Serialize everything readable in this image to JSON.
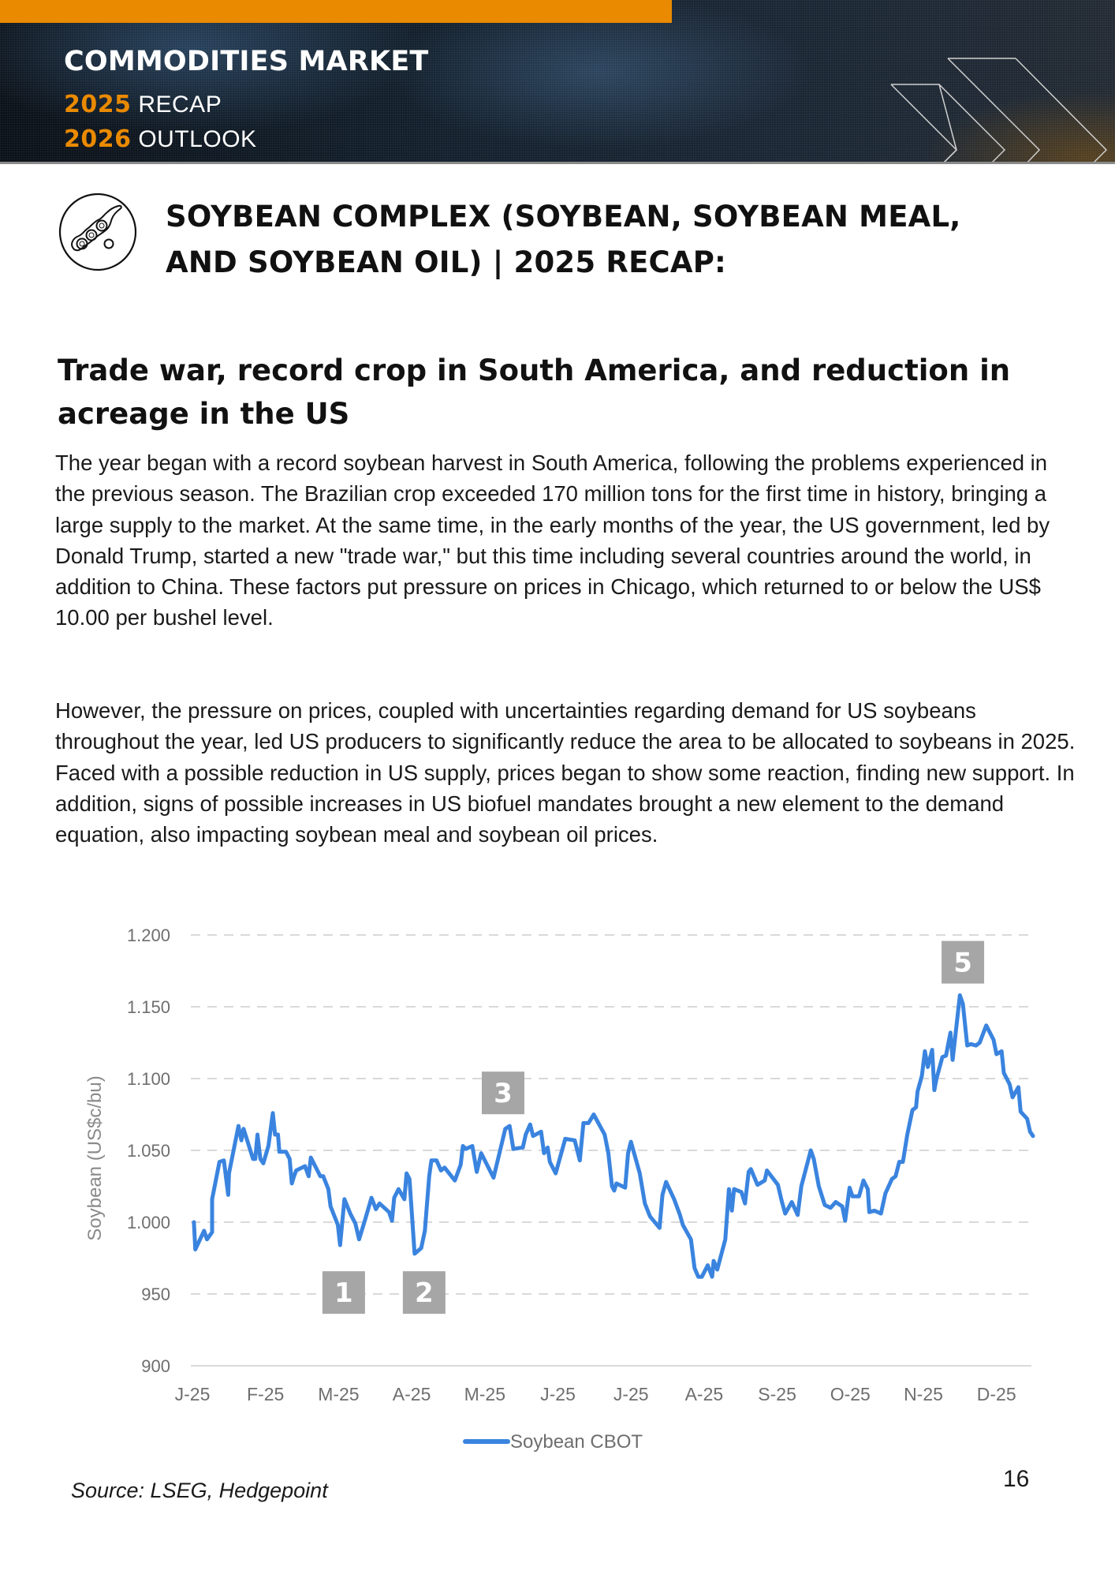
{
  "header": {
    "title": "COMMODITIES MARKET",
    "line1_year": "2025",
    "line1_text": "RECAP",
    "line2_year": "2026",
    "line2_text": "OUTLOOK",
    "accent_color": "#ea8a00"
  },
  "section": {
    "icon": "soybean-pod-icon",
    "title_line1": "SOYBEAN COMPLEX (SOYBEAN, SOYBEAN MEAL,",
    "title_line2": "AND SOYBEAN OIL) | 2025 RECAP:"
  },
  "article": {
    "subheading": "Trade war, record crop in South America, and reduction in acreage in the US",
    "paragraphs": [
      "The year began with a record soybean harvest in South America, following the problems experienced in the previous season. The Brazilian crop exceeded 170 million tons for the first time in history, bringing a large supply to the market. At the same time, in the early months of the year, the US government, led by Donald Trump, started a new \"trade war,\" but this time including several countries around the world, in addition to China. These factors put pressure on prices in Chicago, which returned to or below the US$ 10.00 per bushel level.",
      "However, the pressure on prices, coupled with uncertainties regarding demand for US soybeans throughout the year, led US producers to significantly reduce the area to be allocated to soybeans in 2025. Faced with a possible reduction in US supply, prices began to show some reaction, finding new support. In addition, signs of possible increases in US biofuel mandates brought a new element to the demand equation, also impacting soybean meal and soybean oil prices."
    ]
  },
  "chart_data": {
    "type": "line",
    "title": "",
    "xlabel": "",
    "ylabel": "Soybean (US$c/bu)",
    "ylim": [
      900,
      1200
    ],
    "yticks": [
      900,
      950,
      1000,
      1050,
      1100,
      1150,
      1200
    ],
    "ytick_labels": [
      "900",
      "950",
      "1.000",
      "1.050",
      "1.100",
      "1.150",
      "1.200"
    ],
    "xlim_months": [
      0,
      11.5
    ],
    "xtick_labels": [
      "J-25",
      "F-25",
      "M-25",
      "A-25",
      "M-25",
      "J-25",
      "J-25",
      "A-25",
      "S-25",
      "O-25",
      "N-25",
      "D-25"
    ],
    "x_unit": "months since start of Jan 2025",
    "grid": "horizontal dashed",
    "legend": {
      "position": "bottom-center",
      "entries": [
        "Soybean CBOT"
      ]
    },
    "series": [
      {
        "name": "Soybean CBOT",
        "color": "#3a84df",
        "points": [
          [
            0.02,
            1000
          ],
          [
            0.04,
            981
          ],
          [
            0.16,
            994
          ],
          [
            0.2,
            988
          ],
          [
            0.27,
            993
          ],
          [
            0.27,
            1016
          ],
          [
            0.37,
            1042
          ],
          [
            0.43,
            1043
          ],
          [
            0.49,
            1019
          ],
          [
            0.5,
            1034
          ],
          [
            0.63,
            1067
          ],
          [
            0.67,
            1057
          ],
          [
            0.7,
            1065
          ],
          [
            0.83,
            1044
          ],
          [
            0.86,
            1044
          ],
          [
            0.89,
            1061
          ],
          [
            0.93,
            1044
          ],
          [
            0.97,
            1041
          ],
          [
            1.04,
            1053
          ],
          [
            1.1,
            1076
          ],
          [
            1.13,
            1061
          ],
          [
            1.17,
            1061
          ],
          [
            1.19,
            1049
          ],
          [
            1.28,
            1049
          ],
          [
            1.33,
            1044
          ],
          [
            1.36,
            1027
          ],
          [
            1.39,
            1032
          ],
          [
            1.42,
            1036
          ],
          [
            1.54,
            1039
          ],
          [
            1.59,
            1032
          ],
          [
            1.62,
            1045
          ],
          [
            1.75,
            1032
          ],
          [
            1.79,
            1032
          ],
          [
            1.86,
            1023
          ],
          [
            1.89,
            1011
          ],
          [
            1.99,
            998
          ],
          [
            2.02,
            984
          ],
          [
            2.08,
            1016
          ],
          [
            2.16,
            1006
          ],
          [
            2.23,
            999
          ],
          [
            2.28,
            988
          ],
          [
            2.37,
            1003
          ],
          [
            2.45,
            1017
          ],
          [
            2.51,
            1009
          ],
          [
            2.56,
            1013
          ],
          [
            2.69,
            1007
          ],
          [
            2.73,
            1001
          ],
          [
            2.76,
            1017
          ],
          [
            2.82,
            1023
          ],
          [
            2.9,
            1016
          ],
          [
            2.93,
            1034
          ],
          [
            2.97,
            1030
          ],
          [
            3.04,
            978
          ],
          [
            3.13,
            982
          ],
          [
            3.18,
            994
          ],
          [
            3.24,
            1032
          ],
          [
            3.27,
            1043
          ],
          [
            3.34,
            1043
          ],
          [
            3.4,
            1036
          ],
          [
            3.45,
            1038
          ],
          [
            3.59,
            1029
          ],
          [
            3.67,
            1040
          ],
          [
            3.7,
            1053
          ],
          [
            3.74,
            1051
          ],
          [
            3.83,
            1053
          ],
          [
            3.89,
            1035
          ],
          [
            3.95,
            1048
          ],
          [
            4.12,
            1031
          ],
          [
            4.28,
            1065
          ],
          [
            4.34,
            1067
          ],
          [
            4.39,
            1051
          ],
          [
            4.52,
            1052
          ],
          [
            4.56,
            1061
          ],
          [
            4.62,
            1068
          ],
          [
            4.66,
            1060
          ],
          [
            4.77,
            1063
          ],
          [
            4.81,
            1048
          ],
          [
            4.86,
            1052
          ],
          [
            4.89,
            1042
          ],
          [
            4.97,
            1034
          ],
          [
            5.1,
            1058
          ],
          [
            5.23,
            1057
          ],
          [
            5.3,
            1043
          ],
          [
            5.35,
            1069
          ],
          [
            5.42,
            1069
          ],
          [
            5.49,
            1075
          ],
          [
            5.64,
            1061
          ],
          [
            5.69,
            1048
          ],
          [
            5.74,
            1025
          ],
          [
            5.77,
            1022
          ],
          [
            5.8,
            1027
          ],
          [
            5.92,
            1024
          ],
          [
            5.96,
            1048
          ],
          [
            5.999,
            1056
          ],
          [
            6.12,
            1034
          ],
          [
            6.19,
            1013
          ],
          [
            6.26,
            1004
          ],
          [
            6.39,
            996
          ],
          [
            6.43,
            1019
          ],
          [
            6.48,
            1028
          ],
          [
            6.59,
            1016
          ],
          [
            6.67,
            1005
          ],
          [
            6.71,
            998
          ],
          [
            6.82,
            988
          ],
          [
            6.87,
            968
          ],
          [
            6.92,
            962
          ],
          [
            6.97,
            962
          ],
          [
            7.05,
            970
          ],
          [
            7.11,
            962
          ],
          [
            7.13,
            973
          ],
          [
            7.18,
            967
          ],
          [
            7.29,
            988
          ],
          [
            7.34,
            1023
          ],
          [
            7.38,
            1008
          ],
          [
            7.41,
            1023
          ],
          [
            7.51,
            1021
          ],
          [
            7.56,
            1013
          ],
          [
            7.61,
            1035
          ],
          [
            7.64,
            1037
          ],
          [
            7.73,
            1026
          ],
          [
            7.83,
            1029
          ],
          [
            7.86,
            1036
          ],
          [
            8.01,
            1026
          ],
          [
            8.06,
            1015
          ],
          [
            8.11,
            1006
          ],
          [
            8.2,
            1014
          ],
          [
            8.28,
            1005
          ],
          [
            8.33,
            1025
          ],
          [
            8.46,
            1050
          ],
          [
            8.5,
            1044
          ],
          [
            8.57,
            1025
          ],
          [
            8.65,
            1012
          ],
          [
            8.73,
            1010
          ],
          [
            8.8,
            1014
          ],
          [
            8.89,
            1011
          ],
          [
            8.93,
            1001
          ],
          [
            8.99,
            1024
          ],
          [
            9.03,
            1018
          ],
          [
            9.12,
            1018
          ],
          [
            9.18,
            1029
          ],
          [
            9.24,
            1023
          ],
          [
            9.26,
            1007
          ],
          [
            9.33,
            1008
          ],
          [
            9.42,
            1006
          ],
          [
            9.48,
            1020
          ],
          [
            9.57,
            1030
          ],
          [
            9.62,
            1032
          ],
          [
            9.67,
            1042
          ],
          [
            9.72,
            1042
          ],
          [
            9.78,
            1061
          ],
          [
            9.85,
            1078
          ],
          [
            9.9,
            1080
          ],
          [
            9.92,
            1091
          ],
          [
            9.98,
            1102
          ],
          [
            10.02,
            1119
          ],
          [
            10.06,
            1108
          ],
          [
            10.12,
            1120
          ],
          [
            10.15,
            1092
          ],
          [
            10.18,
            1100
          ],
          [
            10.26,
            1115
          ],
          [
            10.31,
            1116
          ],
          [
            10.37,
            1132
          ],
          [
            10.4,
            1113
          ],
          [
            10.5,
            1158
          ],
          [
            10.54,
            1152
          ],
          [
            10.6,
            1123
          ],
          [
            10.65,
            1124
          ],
          [
            10.72,
            1123
          ],
          [
            10.77,
            1125
          ],
          [
            10.86,
            1137
          ],
          [
            10.96,
            1127
          ],
          [
            11.0,
            1117
          ],
          [
            11.07,
            1119
          ],
          [
            11.1,
            1104
          ],
          [
            11.18,
            1096
          ],
          [
            11.22,
            1087
          ],
          [
            11.3,
            1094
          ],
          [
            11.33,
            1077
          ],
          [
            11.42,
            1072
          ],
          [
            11.46,
            1063
          ],
          [
            11.5,
            1060
          ]
        ]
      }
    ],
    "annotations": [
      {
        "label": "1",
        "t": 2.07,
        "value": 951
      },
      {
        "label": "2",
        "t": 3.17,
        "value": 951
      },
      {
        "label": "3",
        "t": 4.25,
        "value": 1090
      },
      {
        "label": "5",
        "t": 10.54,
        "value": 1181
      }
    ],
    "annotation_color": "#a6a6a6"
  },
  "footer": {
    "source": "Source: LSEG, Hedgepoint",
    "page_number": "16"
  }
}
